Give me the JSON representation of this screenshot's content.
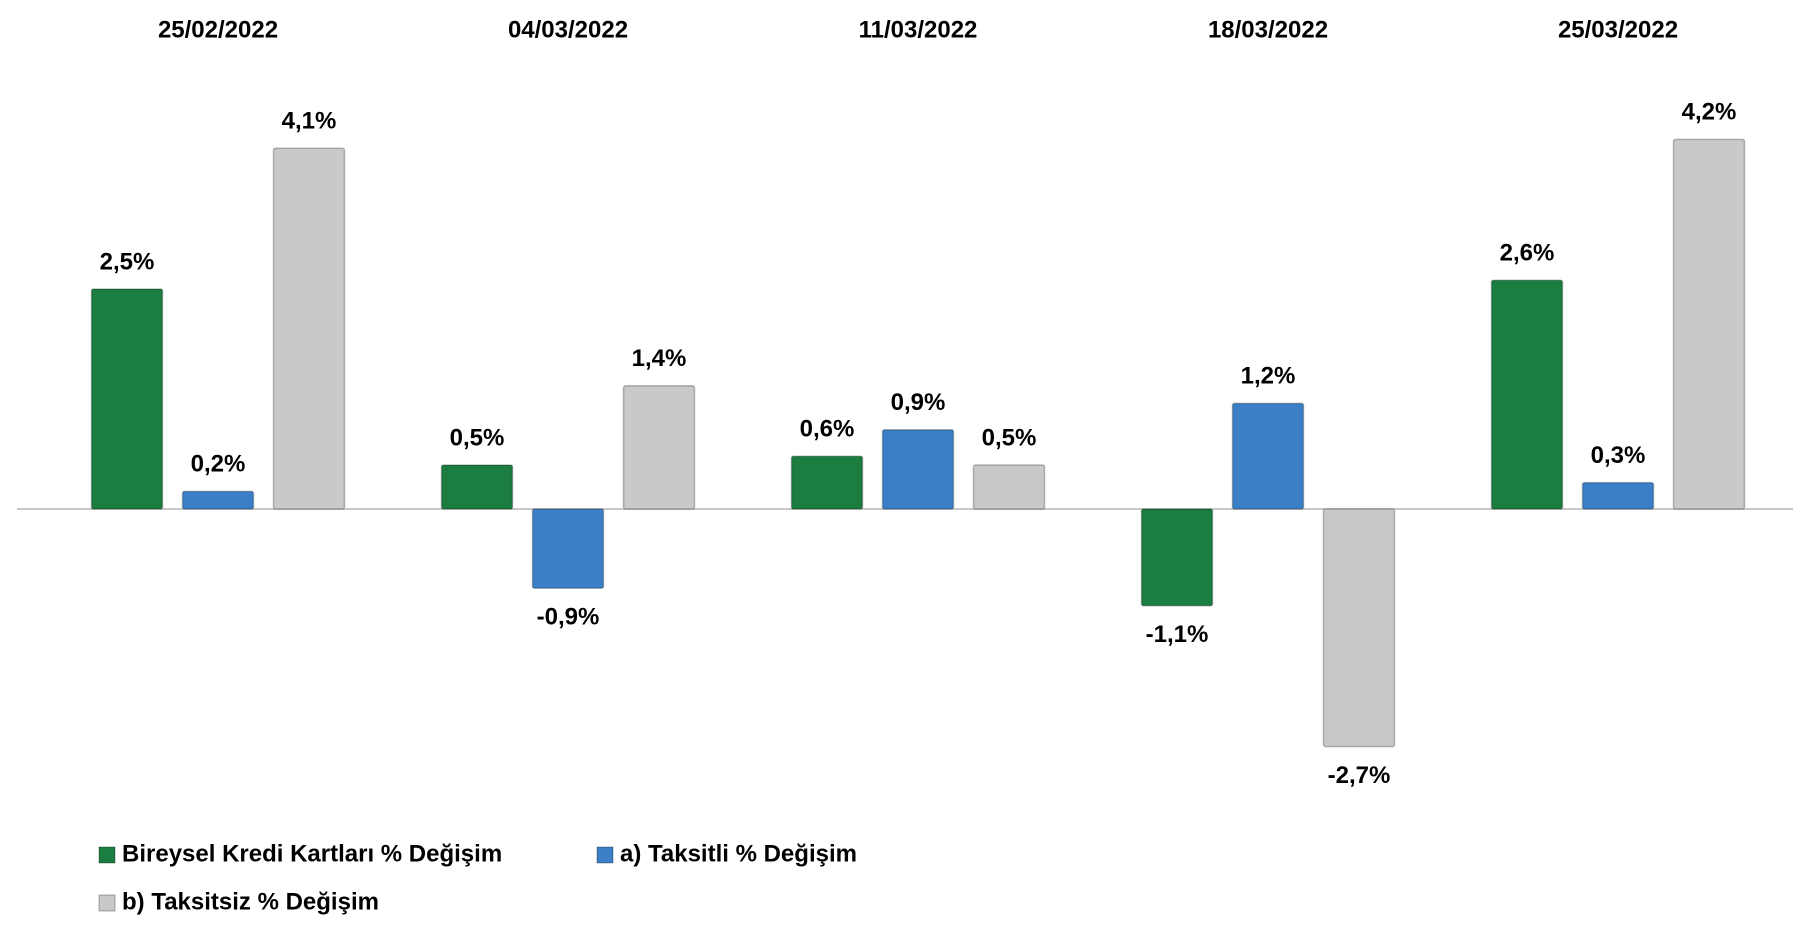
{
  "chart_data": {
    "type": "bar",
    "categories": [
      "25/02/2022",
      "04/03/2022",
      "11/03/2022",
      "18/03/2022",
      "25/03/2022"
    ],
    "series": [
      {
        "name": "Bireysel Kredi Kartları % Değişim",
        "color": "#1b7d40",
        "values": [
          2.5,
          0.5,
          0.6,
          -1.1,
          2.6
        ],
        "value_labels": [
          "2,5%",
          "0,5%",
          "0,6%",
          "-1,1%",
          "2,6%"
        ]
      },
      {
        "name": "a) Taksitli % Değişim",
        "color": "#3b7fc6",
        "values": [
          0.2,
          -0.9,
          0.9,
          1.2,
          0.3
        ],
        "value_labels": [
          "0,2%",
          "-0,9%",
          "0,9%",
          "1,2%",
          "0,3%"
        ]
      },
      {
        "name": "b) Taksitsiz % Değişim",
        "color": "#c9c9c9",
        "values": [
          4.1,
          1.4,
          0.5,
          -2.7,
          4.2
        ],
        "value_labels": [
          "4,1%",
          "1,4%",
          "0,5%",
          "-2,7%",
          "4,2%"
        ]
      }
    ]
  }
}
